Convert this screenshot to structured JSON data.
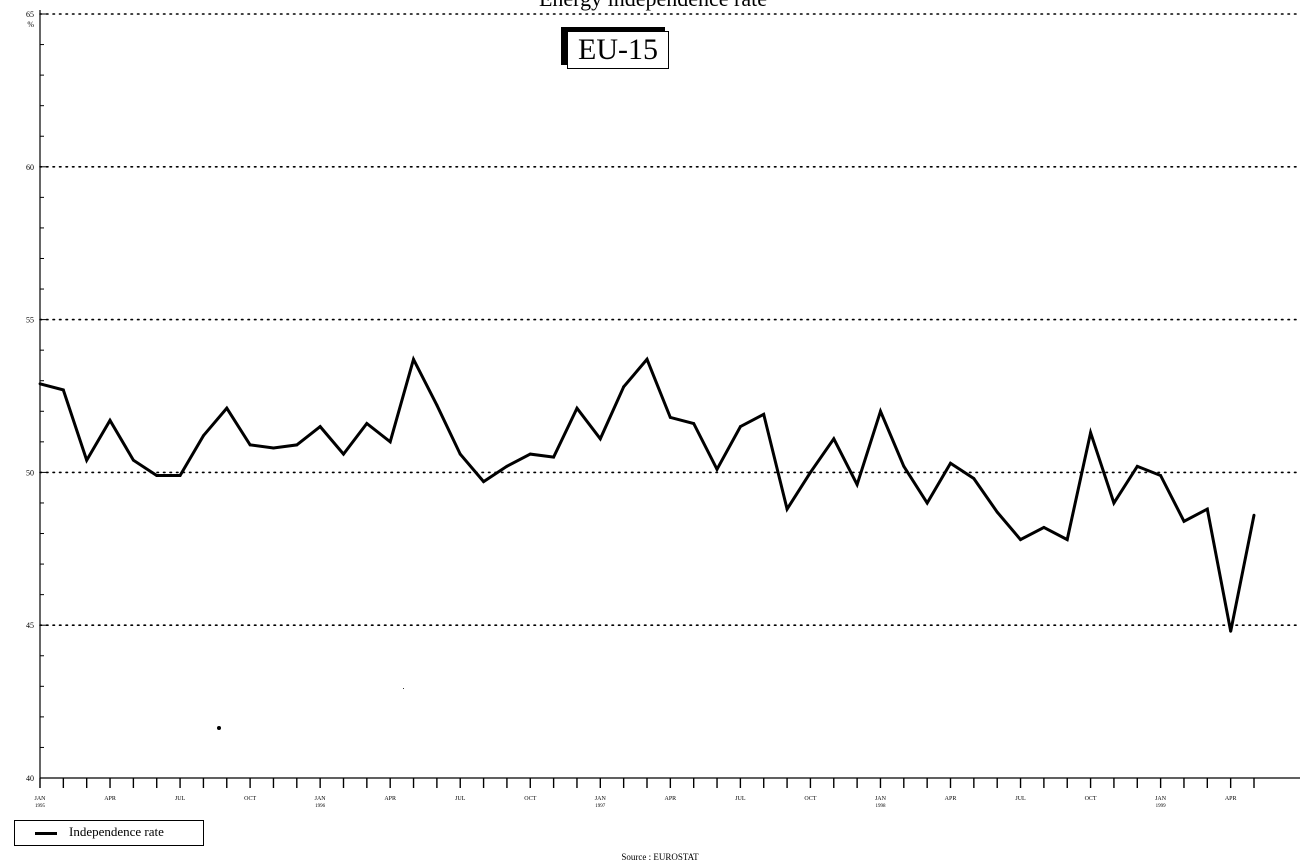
{
  "chart_data": {
    "type": "line",
    "title": "Energy independence rate",
    "region_label": "EU-15",
    "y_unit": "%",
    "ylim": [
      40,
      65
    ],
    "yticks": [
      40,
      45,
      50,
      55,
      60,
      65
    ],
    "grid": "horizontal dotted",
    "legend_position": "bottom-left",
    "x_tick_labels": [
      {
        "label": "JAN",
        "year": "1995"
      },
      {
        "label": "APR",
        "year": ""
      },
      {
        "label": "JUL",
        "year": ""
      },
      {
        "label": "OCT",
        "year": ""
      },
      {
        "label": "JAN",
        "year": "1996"
      },
      {
        "label": "APR",
        "year": ""
      },
      {
        "label": "JUL",
        "year": ""
      },
      {
        "label": "OCT",
        "year": ""
      },
      {
        "label": "JAN",
        "year": "1997"
      },
      {
        "label": "APR",
        "year": ""
      },
      {
        "label": "JUL",
        "year": ""
      },
      {
        "label": "OCT",
        "year": ""
      },
      {
        "label": "JAN",
        "year": "1998"
      },
      {
        "label": "APR",
        "year": ""
      },
      {
        "label": "JUL",
        "year": ""
      },
      {
        "label": "OCT",
        "year": ""
      },
      {
        "label": "JAN",
        "year": "1999"
      },
      {
        "label": "APR",
        "year": ""
      }
    ],
    "x": [
      "1995-01",
      "1995-02",
      "1995-03",
      "1995-04",
      "1995-05",
      "1995-06",
      "1995-07",
      "1995-08",
      "1995-09",
      "1995-10",
      "1995-11",
      "1995-12",
      "1996-01",
      "1996-02",
      "1996-03",
      "1996-04",
      "1996-05",
      "1996-06",
      "1996-07",
      "1996-08",
      "1996-09",
      "1996-10",
      "1996-11",
      "1996-12",
      "1997-01",
      "1997-02",
      "1997-03",
      "1997-04",
      "1997-05",
      "1997-06",
      "1997-07",
      "1997-08",
      "1997-09",
      "1997-10",
      "1997-11",
      "1997-12",
      "1998-01",
      "1998-02",
      "1998-03",
      "1998-04",
      "1998-05",
      "1998-06",
      "1998-07",
      "1998-08",
      "1998-09",
      "1998-10",
      "1998-11",
      "1998-12",
      "1999-01",
      "1999-02",
      "1999-03",
      "1999-04",
      "1999-05"
    ],
    "series": [
      {
        "name": "Independence rate",
        "values": [
          52.9,
          52.7,
          50.4,
          51.7,
          50.4,
          49.9,
          49.9,
          51.2,
          52.1,
          50.9,
          50.8,
          50.9,
          51.5,
          50.6,
          51.6,
          51.0,
          53.7,
          52.2,
          50.6,
          49.7,
          50.2,
          50.6,
          50.5,
          52.1,
          51.1,
          52.8,
          53.7,
          51.8,
          51.6,
          50.1,
          51.5,
          51.9,
          48.8,
          50.0,
          51.1,
          49.6,
          52.0,
          50.2,
          49.0,
          50.3,
          49.8,
          48.7,
          47.8,
          48.2,
          47.8,
          51.3,
          49.0,
          50.2,
          49.9,
          48.4,
          48.8,
          44.8,
          48.6
        ]
      }
    ]
  },
  "legend": {
    "label": "Independence rate"
  },
  "source": "Source : EUROSTAT",
  "y_axis_unit_label": "%"
}
